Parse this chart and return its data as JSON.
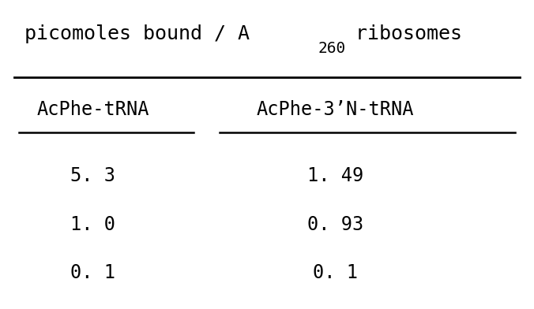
{
  "title_main": "picomoles bound / A",
  "title_sub": "260",
  "title_suffix": " ribosomes",
  "col1_header": "AcPhe-tRNA",
  "col2_header": "AcPhe-3’N-tRNA",
  "col1_values": [
    "5. 3",
    "1. 0",
    "0. 1"
  ],
  "col2_values": [
    "1. 49",
    "0. 93",
    "0. 1"
  ],
  "bg_color": "#ffffff",
  "text_color": "#000000",
  "font_family": "monospace",
  "title_fontsize": 18,
  "header_fontsize": 17,
  "data_fontsize": 17,
  "fig_width": 6.76,
  "fig_height": 3.92,
  "dpi": 100
}
